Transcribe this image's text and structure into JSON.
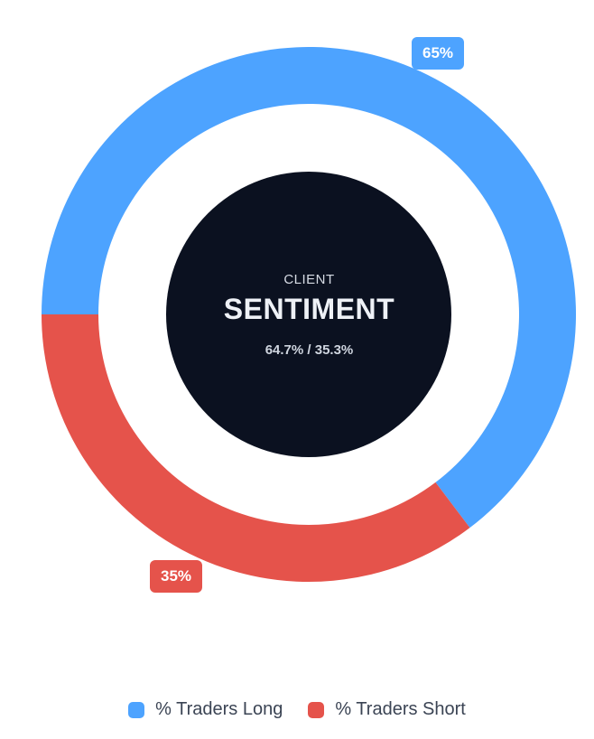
{
  "chart_data": {
    "type": "pie",
    "style": "donut",
    "categories": [
      "% Traders Long",
      "% Traders Short"
    ],
    "values": [
      64.7,
      35.3
    ],
    "slice_labels": [
      "65%",
      "35%"
    ],
    "colors": [
      "#4da3ff",
      "#e5534b"
    ],
    "legend_position": "bottom"
  },
  "center": {
    "eyebrow": "CLIENT",
    "title": "SENTIMENT",
    "subtitle": "64.7% / 35.3%",
    "color": "#0b1120"
  },
  "legend": {
    "items": [
      {
        "label": "% Traders Long",
        "color": "#4da3ff"
      },
      {
        "label": "% Traders Short",
        "color": "#e5534b"
      }
    ]
  }
}
